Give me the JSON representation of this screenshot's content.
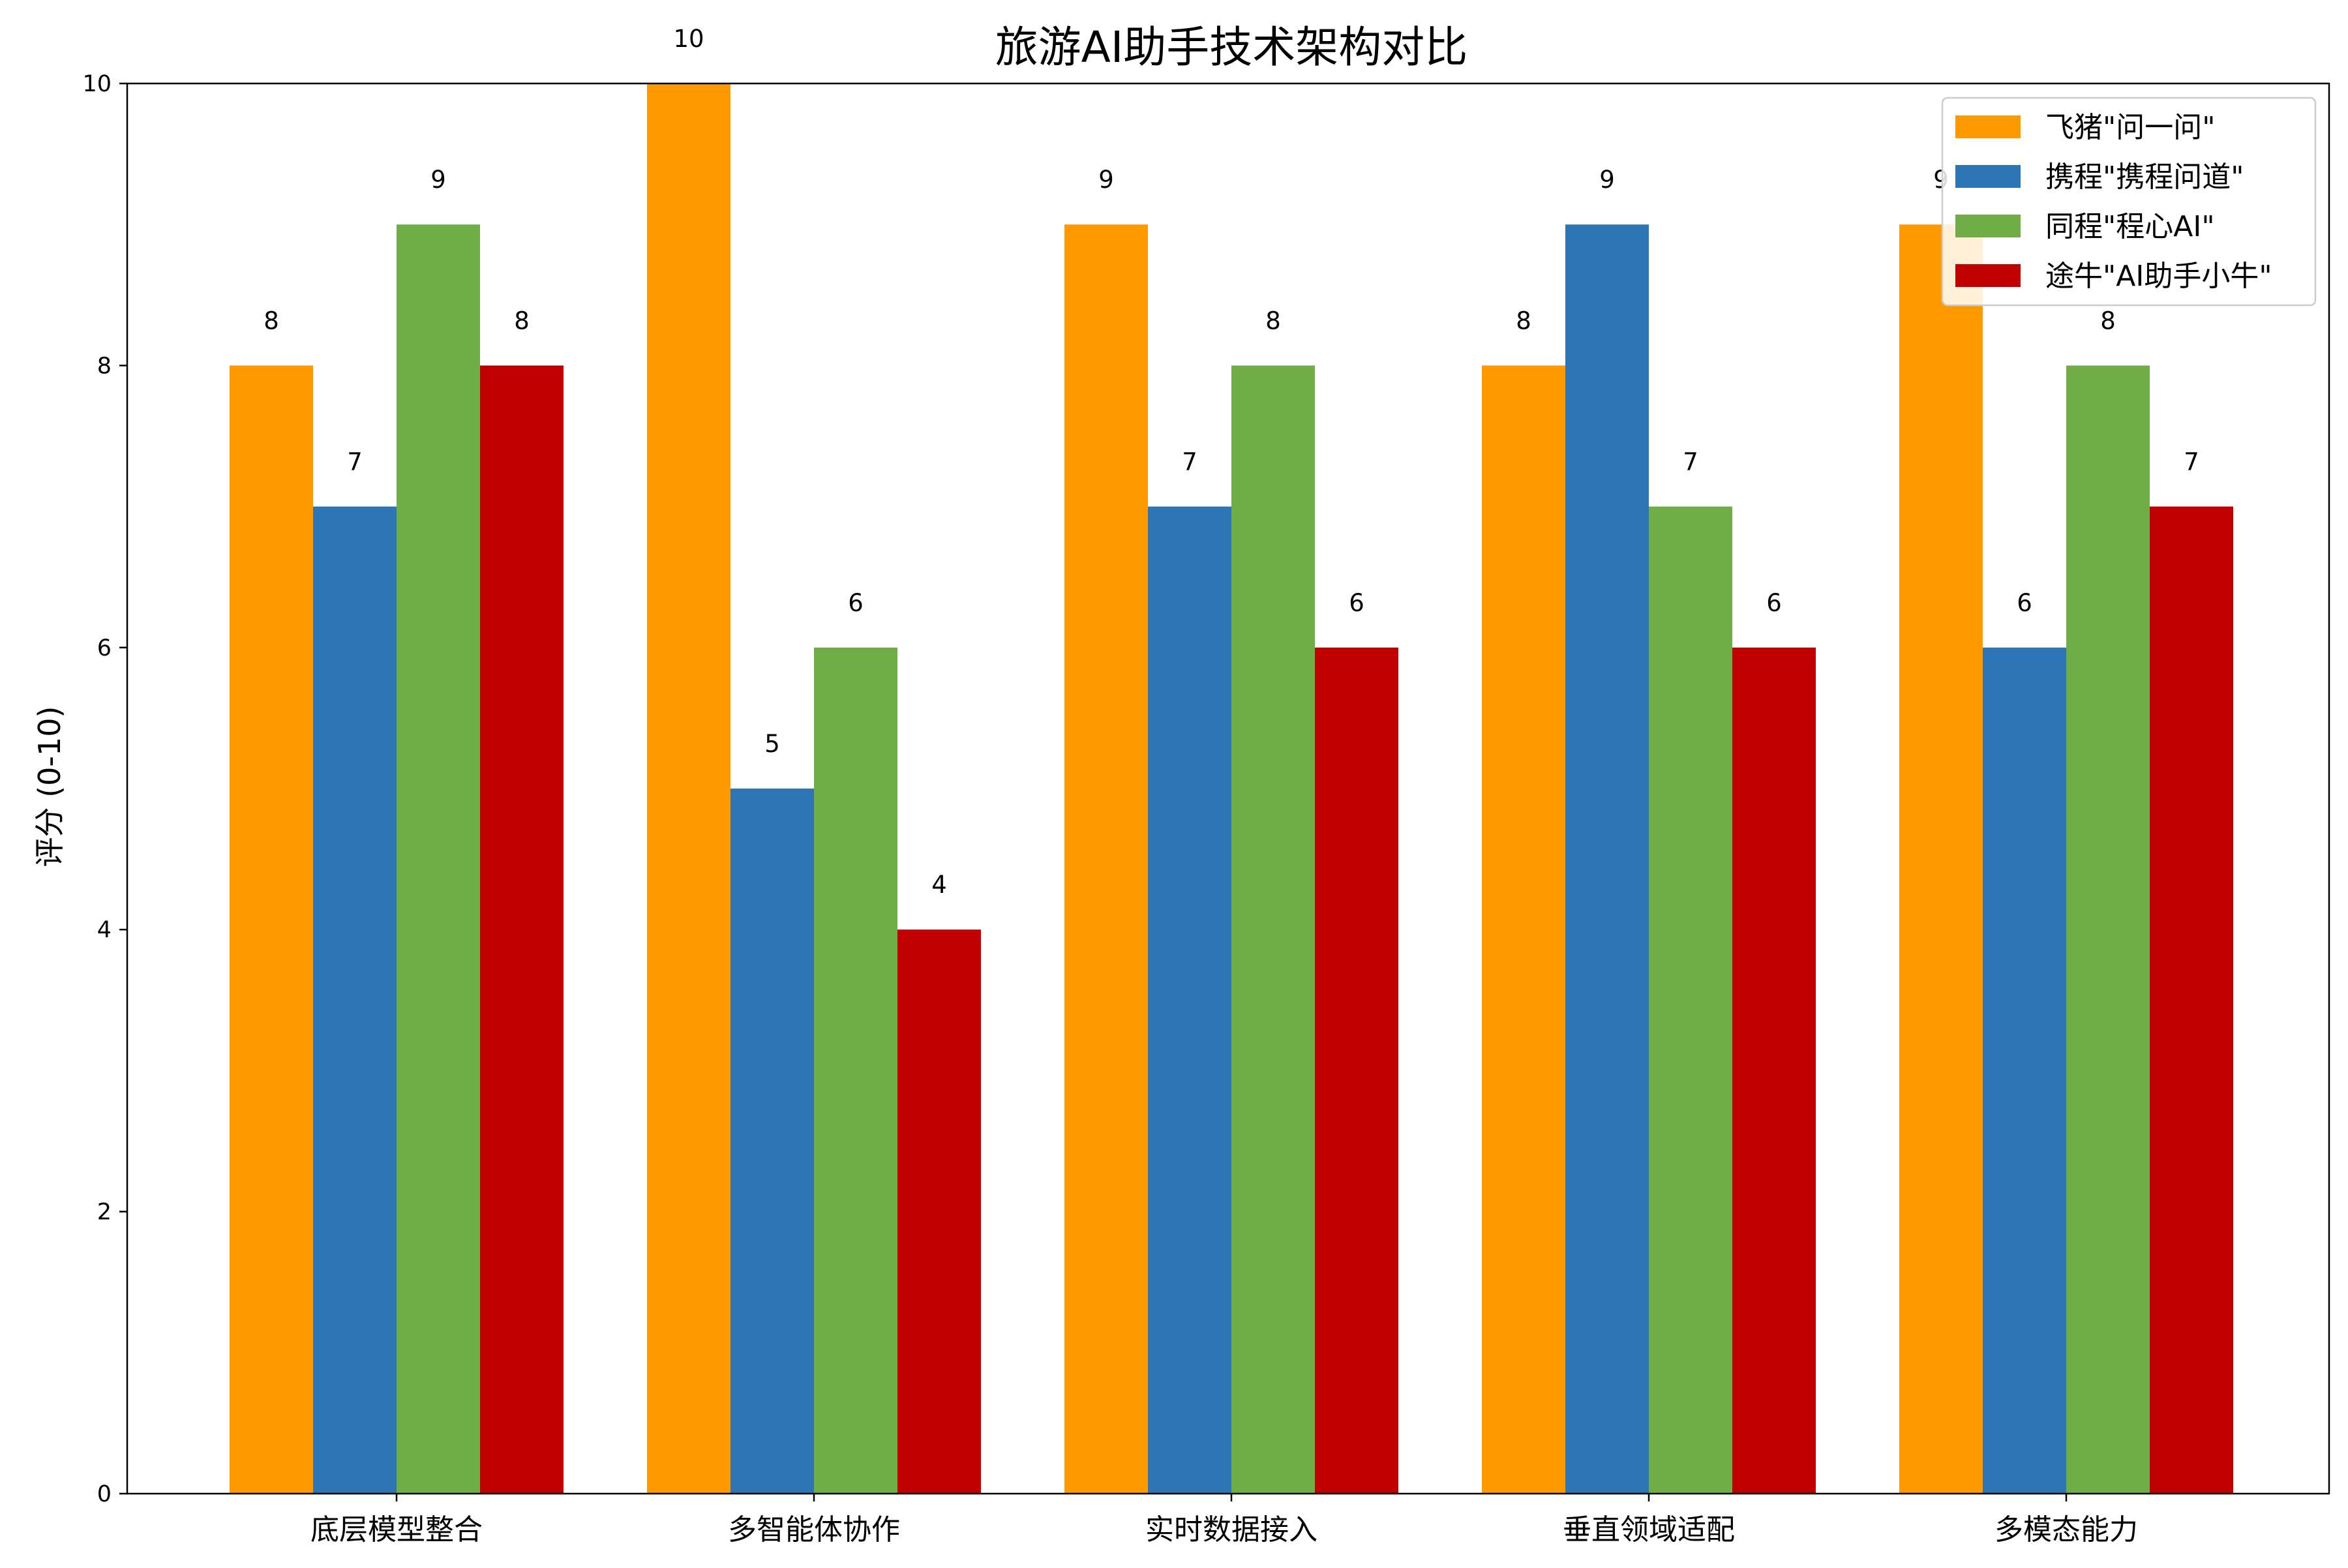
{
  "chart_data": {
    "type": "bar",
    "title": "旅游AI助手技术架构对比",
    "xlabel": "",
    "ylabel": "评分 (0-10)",
    "ylim": [
      0,
      10
    ],
    "yticks": [
      "0",
      "2",
      "4",
      "6",
      "8",
      "10"
    ],
    "categories": [
      "底层模型整合",
      "多智能体协作",
      "实时数据接入",
      "垂直领域适配",
      "多模态能力"
    ],
    "series": [
      {
        "name": "飞猪\"问一问\"",
        "color": "#FF9900",
        "values": [
          8,
          10,
          9,
          8,
          9
        ]
      },
      {
        "name": "携程\"携程问道\"",
        "color": "#2E75B6",
        "values": [
          7,
          5,
          7,
          9,
          6
        ]
      },
      {
        "name": "同程\"程心AI\"",
        "color": "#70AD47",
        "values": [
          9,
          6,
          8,
          7,
          8
        ]
      },
      {
        "name": "途牛\"AI助手小牛\"",
        "color": "#C00000",
        "values": [
          8,
          4,
          6,
          6,
          7
        ]
      }
    ],
    "grid": false,
    "legend_position": "top-right"
  }
}
